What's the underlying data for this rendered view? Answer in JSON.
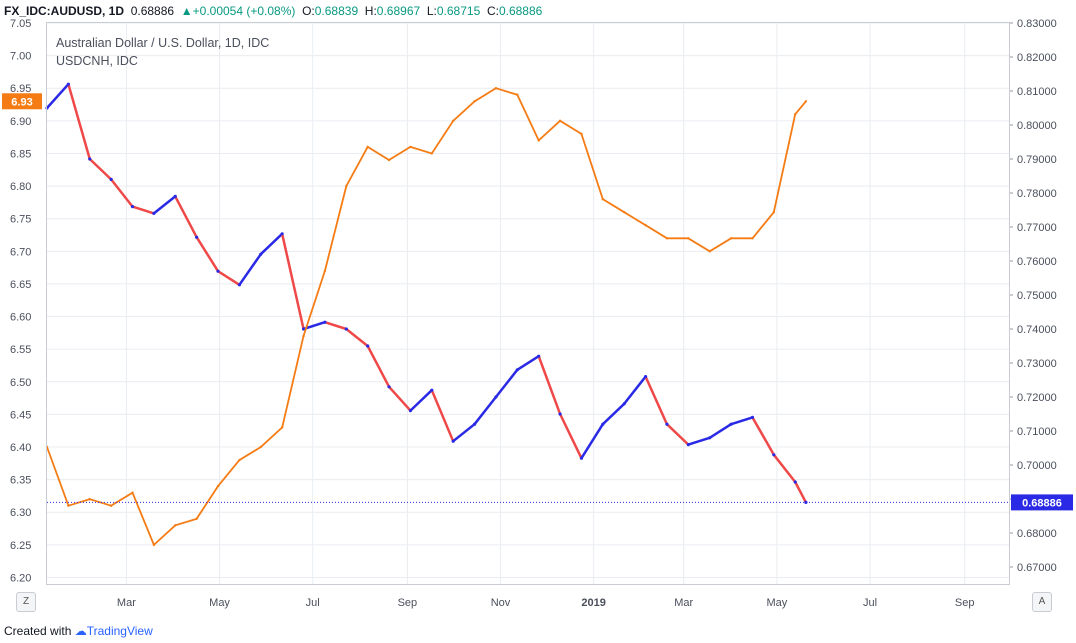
{
  "header": {
    "symbol": "FX_IDC:AUDUSD, 1D",
    "last": "0.68886",
    "change": "+0.00054 (+0.08%)",
    "o_label": "O:",
    "o_val": "0.68839",
    "h_label": "H:",
    "h_val": "0.68967",
    "l_label": "L:",
    "l_val": "0.68715",
    "c_label": "C:",
    "c_val": "0.68886",
    "arrow": "▲"
  },
  "legend": {
    "title": "Australian Dollar / U.S. Dollar, 1D, IDC",
    "overlay": "USDCNH, IDC"
  },
  "footer": {
    "created_with": "Created with",
    "brand": "TradingView"
  },
  "controls": {
    "zoom_label": "Z",
    "auto_label": "A"
  },
  "colors": {
    "candle_up": "#2a2ae6",
    "candle_down": "#ef4848",
    "overlay_line": "#f57c14",
    "price_line": "#2a2ae6",
    "grid": "#e9ecf1"
  },
  "chart_data": {
    "type": "line",
    "title": "Australian Dollar / U.S. Dollar, 1D, IDC",
    "x_ticks": [
      "Mar",
      "May",
      "Jul",
      "Sep",
      "Nov",
      "2019",
      "Mar",
      "May",
      "Jul",
      "Sep"
    ],
    "left_axis": {
      "ticks": [
        "7.05",
        "7.00",
        "6.95",
        "6.90",
        "6.85",
        "6.80",
        "6.75",
        "6.70",
        "6.65",
        "6.60",
        "6.55",
        "6.50",
        "6.45",
        "6.40",
        "6.35",
        "6.30",
        "6.25",
        "6.20"
      ],
      "range": [
        6.19,
        7.05
      ]
    },
    "right_axis": {
      "ticks": [
        "0.83000",
        "0.82000",
        "0.81000",
        "0.80000",
        "0.79000",
        "0.78000",
        "0.77000",
        "0.76000",
        "0.75000",
        "0.74000",
        "0.73000",
        "0.72000",
        "0.71000",
        "0.70000",
        "0.69000",
        "0.68000",
        "0.67000"
      ],
      "range": [
        0.665,
        0.83
      ]
    },
    "current_labels": {
      "usdcnh": "6.93",
      "audusd": "0.68886"
    },
    "series": [
      {
        "name": "USDCNH, IDC",
        "axis": "left",
        "x": [
          "2018-01-08",
          "2018-01-22",
          "2018-02-05",
          "2018-02-19",
          "2018-03-05",
          "2018-03-19",
          "2018-04-02",
          "2018-04-16",
          "2018-04-30",
          "2018-05-14",
          "2018-05-28",
          "2018-06-11",
          "2018-06-25",
          "2018-07-09",
          "2018-07-23",
          "2018-08-06",
          "2018-08-20",
          "2018-09-03",
          "2018-09-17",
          "2018-10-01",
          "2018-10-15",
          "2018-10-29",
          "2018-11-12",
          "2018-11-26",
          "2018-12-10",
          "2018-12-24",
          "2019-01-07",
          "2019-01-21",
          "2019-02-04",
          "2019-02-18",
          "2019-03-04",
          "2019-03-18",
          "2019-04-01",
          "2019-04-15",
          "2019-04-29",
          "2019-05-13",
          "2019-05-20"
        ],
        "values": [
          6.4,
          6.31,
          6.32,
          6.31,
          6.33,
          6.25,
          6.28,
          6.29,
          6.34,
          6.38,
          6.4,
          6.43,
          6.57,
          6.67,
          6.8,
          6.86,
          6.84,
          6.86,
          6.85,
          6.9,
          6.93,
          6.95,
          6.94,
          6.87,
          6.9,
          6.88,
          6.78,
          6.76,
          6.74,
          6.72,
          6.72,
          6.7,
          6.72,
          6.72,
          6.76,
          6.91,
          6.93
        ]
      },
      {
        "name": "Australian Dollar / U.S. Dollar",
        "axis": "right",
        "x": [
          "2018-01-08",
          "2018-01-22",
          "2018-02-05",
          "2018-02-19",
          "2018-03-05",
          "2018-03-19",
          "2018-04-02",
          "2018-04-16",
          "2018-04-30",
          "2018-05-14",
          "2018-05-28",
          "2018-06-11",
          "2018-06-25",
          "2018-07-09",
          "2018-07-23",
          "2018-08-06",
          "2018-08-20",
          "2018-09-03",
          "2018-09-17",
          "2018-10-01",
          "2018-10-15",
          "2018-10-29",
          "2018-11-12",
          "2018-11-26",
          "2018-12-10",
          "2018-12-24",
          "2019-01-07",
          "2019-01-21",
          "2019-02-04",
          "2019-02-18",
          "2019-03-04",
          "2019-03-18",
          "2019-04-01",
          "2019-04-15",
          "2019-04-29",
          "2019-05-13",
          "2019-05-20"
        ],
        "values": [
          0.805,
          0.812,
          0.79,
          0.784,
          0.776,
          0.774,
          0.779,
          0.767,
          0.757,
          0.753,
          0.762,
          0.768,
          0.74,
          0.742,
          0.74,
          0.735,
          0.723,
          0.716,
          0.722,
          0.707,
          0.712,
          0.72,
          0.728,
          0.732,
          0.715,
          0.702,
          0.712,
          0.718,
          0.726,
          0.712,
          0.706,
          0.708,
          0.712,
          0.714,
          0.703,
          0.695,
          0.689
        ]
      }
    ]
  }
}
